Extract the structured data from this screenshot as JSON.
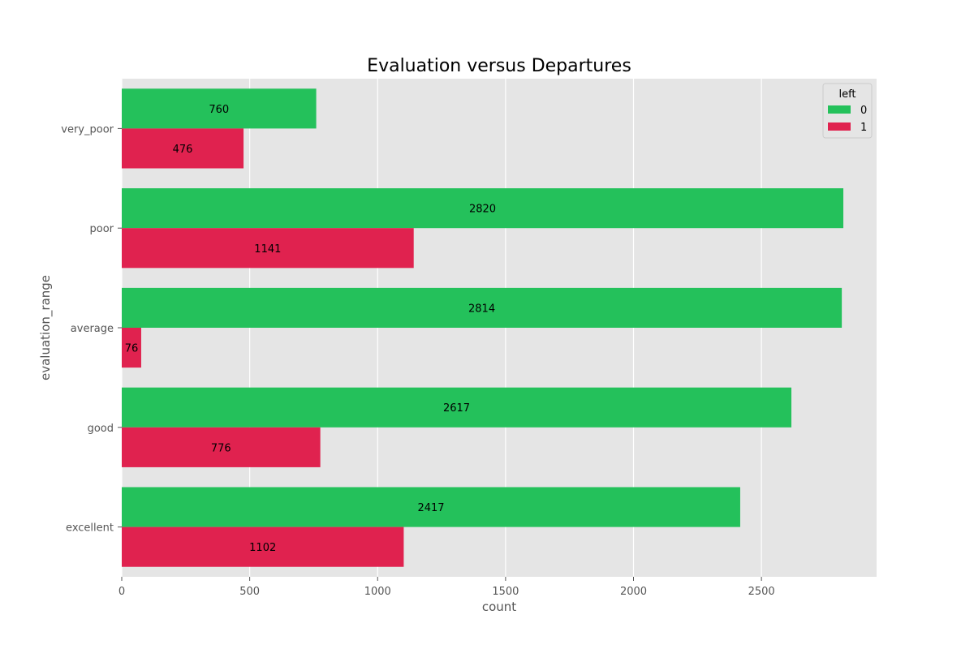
{
  "chart_data": {
    "type": "bar",
    "orientation": "horizontal",
    "title": "Evaluation versus Departures",
    "xlabel": "count",
    "ylabel": "evaluation_range",
    "categories": [
      "very_poor",
      "poor",
      "average",
      "good",
      "excellent"
    ],
    "xlim": [
      0,
      2950
    ],
    "xticks": [
      0,
      500,
      1000,
      1500,
      2000,
      2500
    ],
    "grid": true,
    "legend": {
      "title": "left",
      "placement": "top-right",
      "entries": [
        "0",
        "1"
      ]
    },
    "series": [
      {
        "name": "0",
        "color": "#24c15b",
        "values": [
          760,
          2820,
          2814,
          2617,
          2417
        ]
      },
      {
        "name": "1",
        "color": "#e0224f",
        "values": [
          476,
          1141,
          76,
          776,
          1102
        ]
      }
    ]
  }
}
